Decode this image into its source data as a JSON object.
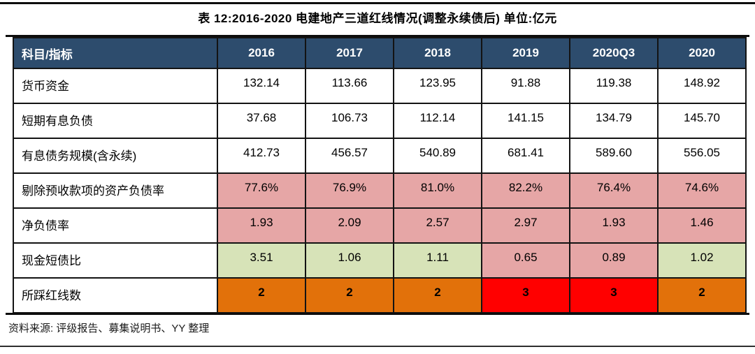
{
  "title": "表 12:2016-2020 电建地产三道红线情况(调整永续债后)  单位:亿元",
  "footer": "资料来源: 评级报告、募集说明书、YY 整理",
  "colors": {
    "header_bg": "#2D4C6D",
    "header_text": "#FFFFFF",
    "warn_pink": "#E6A6A6",
    "safe_green": "#D7E3B8",
    "two_lines_orange": "#E2710A",
    "three_lines_red": "#FF0000",
    "border_black": "#131313"
  },
  "table": {
    "header": [
      "科目/指标",
      "2016",
      "2017",
      "2018",
      "2019",
      "2020Q3",
      "2020"
    ],
    "rows": [
      {
        "label": "货币资金",
        "values": [
          "132.14",
          "113.66",
          "123.95",
          "91.88",
          "119.38",
          "148.92"
        ]
      },
      {
        "label": "短期有息负债",
        "values": [
          "37.68",
          "106.73",
          "112.14",
          "141.15",
          "134.79",
          "145.70"
        ]
      },
      {
        "label": "有息债务规模(含永续)",
        "values": [
          "412.73",
          "456.57",
          "540.89",
          "681.41",
          "589.60",
          "556.05"
        ]
      },
      {
        "label": "剔除预收款项的资产负债率",
        "values": [
          "77.6%",
          "76.9%",
          "81.0%",
          "82.2%",
          "76.4%",
          "74.6%"
        ],
        "cell_bg": [
          "#E6A6A6",
          "#E6A6A6",
          "#E6A6A6",
          "#E6A6A6",
          "#E6A6A6",
          "#E6A6A6"
        ]
      },
      {
        "label": "净负债率",
        "values": [
          "1.93",
          "2.09",
          "2.57",
          "2.97",
          "1.93",
          "1.46"
        ],
        "cell_bg": [
          "#E6A6A6",
          "#E6A6A6",
          "#E6A6A6",
          "#E6A6A6",
          "#E6A6A6",
          "#E6A6A6"
        ]
      },
      {
        "label": "现金短债比",
        "values": [
          "3.51",
          "1.06",
          "1.11",
          "0.65",
          "0.89",
          "1.02"
        ],
        "cell_bg": [
          "#D7E3B8",
          "#D7E3B8",
          "#D7E3B8",
          "#E6A6A6",
          "#E6A6A6",
          "#D7E3B8"
        ]
      },
      {
        "label": "所踩红线数",
        "values": [
          "2",
          "2",
          "2",
          "3",
          "3",
          "2"
        ],
        "cell_bg": [
          "#E2710A",
          "#E2710A",
          "#E2710A",
          "#FF0000",
          "#FF0000",
          "#E2710A"
        ]
      }
    ]
  }
}
